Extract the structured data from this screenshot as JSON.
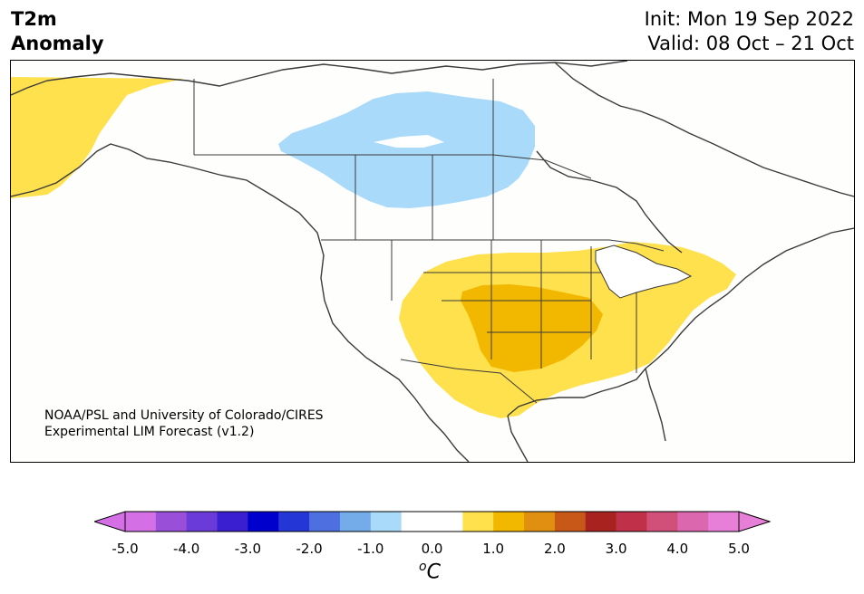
{
  "title": {
    "left_line1": "T2m",
    "left_line2": "Anomaly",
    "init": "Init: Mon 19 Sep 2022",
    "valid": "Valid: 08 Oct – 21 Oct"
  },
  "credit": {
    "line1": "NOAA/PSL and University of Colorado/CIRES",
    "line2": "Experimental LIM Forecast (v1.2)"
  },
  "colorbar": {
    "colors": [
      "#d46fe5",
      "#9a4fd9",
      "#6a3bd9",
      "#3a1fd0",
      "#0000cc",
      "#2437d6",
      "#4d6fe0",
      "#74ace9",
      "#a9dafa",
      "#ffffff",
      "#ffffff",
      "#ffe04d",
      "#f2b800",
      "#e08f10",
      "#c85818",
      "#a82220",
      "#c03048",
      "#d0507a",
      "#db67ae",
      "#e77fd8"
    ],
    "min_color": "#d46fe5",
    "max_color": "#e77fd8",
    "ticks": [
      "-5.0",
      "-4.0",
      "-3.0",
      "-2.0",
      "-1.0",
      "0.0",
      "1.0",
      "2.0",
      "3.0",
      "4.0",
      "5.0"
    ],
    "unit_base": "C",
    "unit_sup": "o"
  },
  "anomaly_colors": {
    "cold_light": "#a9dafa",
    "warm_light": "#ffe04d",
    "warm_medium": "#f2b800"
  }
}
